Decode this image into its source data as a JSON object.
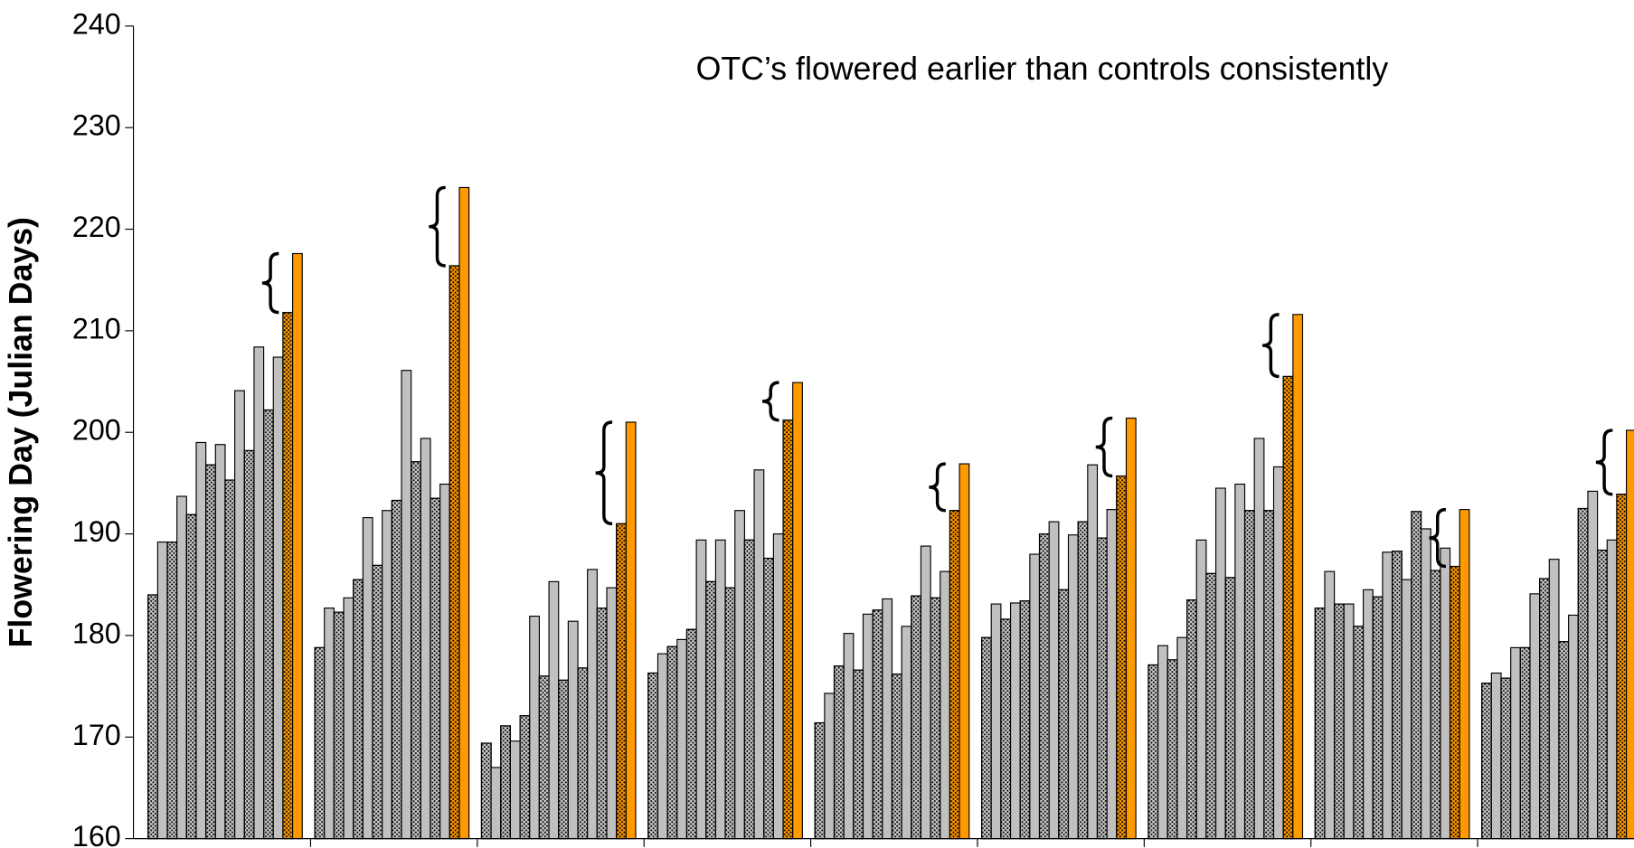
{
  "chart_data": {
    "type": "bar",
    "annotation": "OTC’s flowered earlier than controls consistently",
    "y_label": "Flowering Day (Julian Days)",
    "categories": [
      null,
      null,
      null,
      null,
      null,
      null,
      null,
      null,
      null
    ],
    "ylim": [
      160,
      240
    ],
    "yticks": [
      160,
      170,
      180,
      190,
      200,
      210,
      220,
      230,
      240
    ],
    "grid": false,
    "series": [
      {
        "color": "#c8c8c8",
        "pattern": "dots",
        "values": [
          184,
          178.8,
          169.4,
          176.3,
          171.4,
          179.8,
          177.1,
          182.7,
          175.3
        ]
      },
      {
        "color": "#c0c0c0",
        "pattern": "solid",
        "values": [
          189.2,
          182.7,
          167,
          178.2,
          174.3,
          183.1,
          179,
          186.3,
          176.3
        ]
      },
      {
        "color": "#c8c8c8",
        "pattern": "dots",
        "values": [
          189.2,
          182.3,
          171.1,
          178.9,
          177,
          181.6,
          177.6,
          183.1,
          175.8
        ]
      },
      {
        "color": "#c0c0c0",
        "pattern": "solid",
        "values": [
          193.7,
          183.7,
          169.6,
          179.6,
          180.2,
          183.2,
          179.8,
          183.1,
          178.8
        ]
      },
      {
        "color": "#c8c8c8",
        "pattern": "dots",
        "values": [
          191.9,
          185.5,
          172.1,
          180.6,
          176.6,
          183.4,
          183.5,
          180.9,
          178.8
        ]
      },
      {
        "color": "#c0c0c0",
        "pattern": "solid",
        "values": [
          199,
          191.6,
          181.9,
          189.4,
          182.1,
          188,
          189.4,
          184.5,
          184.1
        ]
      },
      {
        "color": "#c8c8c8",
        "pattern": "dots",
        "values": [
          196.8,
          186.9,
          176,
          185.3,
          182.5,
          190,
          186.1,
          183.8,
          185.6
        ]
      },
      {
        "color": "#c0c0c0",
        "pattern": "solid",
        "values": [
          198.8,
          192.3,
          185.3,
          189.4,
          183.6,
          191.2,
          194.5,
          188.2,
          187.5
        ]
      },
      {
        "color": "#c8c8c8",
        "pattern": "dots",
        "values": [
          195.3,
          193.3,
          175.6,
          184.7,
          176.2,
          184.5,
          185.7,
          188.3,
          179.4
        ]
      },
      {
        "color": "#c0c0c0",
        "pattern": "solid",
        "values": [
          204.1,
          206.1,
          181.4,
          192.3,
          180.9,
          189.9,
          194.9,
          185.5,
          182
        ]
      },
      {
        "color": "#c8c8c8",
        "pattern": "dots",
        "values": [
          198.2,
          197.1,
          176.8,
          189.4,
          183.9,
          191.2,
          192.3,
          192.2,
          192.5
        ]
      },
      {
        "color": "#c0c0c0",
        "pattern": "solid",
        "values": [
          208.4,
          199.4,
          186.5,
          196.3,
          188.8,
          196.8,
          199.4,
          190.5,
          194.2
        ]
      },
      {
        "color": "#c8c8c8",
        "pattern": "dots",
        "values": [
          202.2,
          193.5,
          182.7,
          187.6,
          183.7,
          189.6,
          192.3,
          186.4,
          188.4
        ]
      },
      {
        "color": "#c0c0c0",
        "pattern": "solid",
        "values": [
          207.4,
          194.9,
          184.7,
          190,
          186.3,
          192.4,
          196.6,
          188.6,
          189.4
        ]
      },
      {
        "color": "#ff9900",
        "pattern": "dots",
        "values": [
          211.8,
          216.4,
          191,
          201.2,
          192.3,
          195.7,
          205.5,
          186.8,
          193.9
        ]
      },
      {
        "color": "#ff9900",
        "pattern": "solid",
        "values": [
          217.6,
          224.1,
          201,
          204.9,
          196.9,
          201.4,
          211.6,
          192.4,
          200.2
        ]
      }
    ]
  }
}
